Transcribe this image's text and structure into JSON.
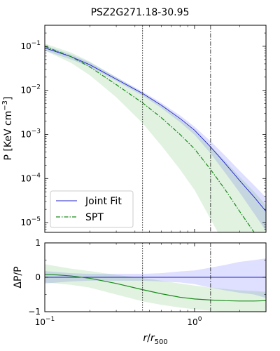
{
  "figure": {
    "title": "PSZ2G271.18-30.95"
  },
  "chart_data": [
    {
      "type": "line",
      "panel": "top",
      "title": "PSZ2G271.18-30.95",
      "xlabel": "",
      "ylabel": "P [KeV cm⁻³]",
      "xscale": "log",
      "yscale": "log",
      "xlim": [
        0.1,
        3.0
      ],
      "ylim": [
        6e-06,
        0.3
      ],
      "yticks": [
        {
          "value": 0.1,
          "base": "10",
          "exp": "−1"
        },
        {
          "value": 0.01,
          "base": "10",
          "exp": "−2"
        },
        {
          "value": 0.001,
          "base": "10",
          "exp": "−3"
        },
        {
          "value": 0.0001,
          "base": "10",
          "exp": "−4"
        },
        {
          "value": 1e-05,
          "base": "10",
          "exp": "−5"
        }
      ],
      "vlines": [
        {
          "x": 0.45,
          "style": "dotted"
        },
        {
          "x": 1.28,
          "style": "dashdot"
        }
      ],
      "legend": {
        "position": "lower-left"
      },
      "series": [
        {
          "name": "Joint Fit",
          "color": "#2020cc",
          "style": "solid",
          "x": [
            0.1,
            0.15,
            0.2,
            0.3,
            0.45,
            0.6,
            0.8,
            1.0,
            1.28,
            1.6,
            2.0,
            2.5,
            3.0
          ],
          "y": [
            0.092,
            0.058,
            0.038,
            0.018,
            0.0085,
            0.0046,
            0.0023,
            0.00125,
            0.00052,
            0.00022,
            9e-05,
            3.8e-05,
            1.8e-05
          ],
          "band_low": [
            0.08,
            0.05,
            0.034,
            0.0163,
            0.0076,
            0.004,
            0.0019,
            0.00098,
            0.00037,
            0.000135,
            4.8e-05,
            1.6e-05,
            6.5e-06
          ],
          "band_high": [
            0.105,
            0.065,
            0.043,
            0.02,
            0.0094,
            0.0052,
            0.0027,
            0.0015,
            0.0007,
            0.00033,
            0.00015,
            7e-05,
            3.7e-05
          ]
        },
        {
          "name": "SPT",
          "color": "#1a8a1a",
          "style": "dashdot",
          "x": [
            0.1,
            0.15,
            0.2,
            0.3,
            0.45,
            0.6,
            0.8,
            1.0,
            1.28,
            1.6,
            2.0,
            2.5,
            3.0
          ],
          "y": [
            0.1,
            0.058,
            0.034,
            0.0135,
            0.0052,
            0.0024,
            0.001,
            0.00047,
            0.00016,
            5.6e-05,
            1.8e-05,
            6e-06,
            2.5e-06
          ],
          "band_low": [
            0.08,
            0.042,
            0.022,
            0.007,
            0.0018,
            0.00056,
            0.00016,
            5.5e-05,
            1.2e-05,
            3e-06,
            1e-06,
            5e-07,
            2e-07
          ],
          "band_high": [
            0.115,
            0.072,
            0.045,
            0.02,
            0.0088,
            0.0046,
            0.0022,
            0.0012,
            0.00053,
            0.00025,
            0.00011,
            5e-05,
            2.5e-05
          ]
        }
      ]
    },
    {
      "type": "line",
      "panel": "bottom",
      "xlabel": "r/r500",
      "ylabel": "ΔP/P",
      "xscale": "log",
      "yscale": "linear",
      "xlim": [
        0.1,
        3.0
      ],
      "ylim": [
        -1,
        1
      ],
      "xticks": [
        {
          "value": 0.1,
          "base": "10",
          "exp": "−1"
        },
        {
          "value": 1.0,
          "base": "10",
          "exp": "0"
        }
      ],
      "yticks": [
        {
          "value": 1,
          "label": "1"
        },
        {
          "value": 0,
          "label": "0"
        },
        {
          "value": -1,
          "label": "−1"
        }
      ],
      "hline": 0,
      "vlines": [
        {
          "x": 0.45,
          "style": "dotted"
        },
        {
          "x": 1.28,
          "style": "dashdot"
        }
      ],
      "series": [
        {
          "name": "Joint Fit",
          "color": "#2020cc",
          "x": [
            0.1,
            3.0
          ],
          "y": [
            0.0,
            0.0
          ],
          "band_x": [
            0.1,
            0.15,
            0.2,
            0.3,
            0.45,
            0.6,
            0.8,
            1.0,
            1.28,
            1.6,
            2.0,
            2.5,
            3.0
          ],
          "band_low": [
            -0.18,
            -0.12,
            -0.1,
            -0.1,
            -0.1,
            -0.12,
            -0.15,
            -0.2,
            -0.3,
            -0.38,
            -0.45,
            -0.5,
            -0.6
          ],
          "band_high": [
            0.18,
            0.12,
            0.1,
            0.1,
            0.1,
            0.12,
            0.17,
            0.2,
            0.28,
            0.36,
            0.45,
            0.5,
            0.55
          ]
        },
        {
          "name": "SPT",
          "color": "#1a8a1a",
          "x": [
            0.1,
            0.12,
            0.15,
            0.2,
            0.3,
            0.45,
            0.6,
            0.8,
            1.0,
            1.28,
            1.6,
            2.0,
            2.5,
            3.0
          ],
          "y": [
            0.08,
            0.07,
            0.04,
            -0.03,
            -0.18,
            -0.36,
            -0.48,
            -0.58,
            -0.63,
            -0.66,
            -0.68,
            -0.69,
            -0.69,
            -0.68
          ],
          "band_x": [
            0.1,
            0.15,
            0.2,
            0.3,
            0.45,
            0.6,
            0.8,
            1.0,
            1.28,
            1.6,
            2.0,
            2.5,
            3.0
          ],
          "band_low": [
            -0.15,
            -0.22,
            -0.3,
            -0.5,
            -0.7,
            -0.8,
            -0.88,
            -0.93,
            -0.97,
            -1.0,
            -1.0,
            -1.0,
            -1.0
          ],
          "band_high": [
            0.38,
            0.25,
            0.18,
            0.07,
            -0.02,
            -0.1,
            -0.18,
            -0.24,
            -0.3,
            -0.34,
            -0.38,
            -0.4,
            -0.42
          ]
        }
      ]
    }
  ]
}
